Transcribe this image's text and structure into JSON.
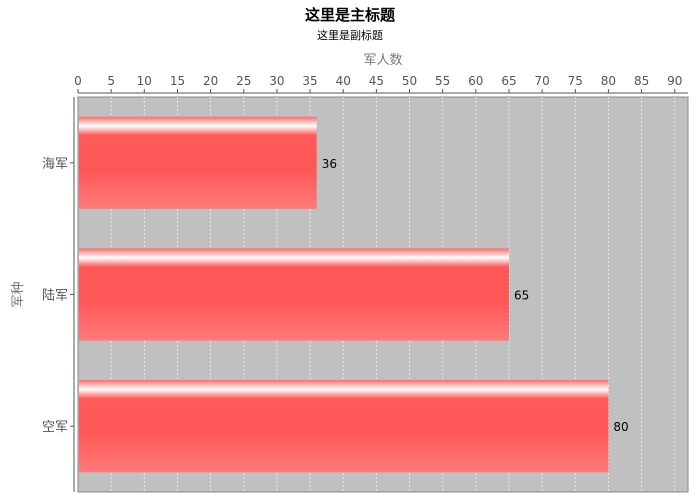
{
  "chart_data": {
    "type": "bar",
    "orientation": "horizontal",
    "title": "这里是主标题",
    "subtitle": "这里是副标题",
    "xlabel": "军人数",
    "ylabel": "军种",
    "xlim": [
      0,
      92
    ],
    "x_ticks": [
      0,
      5,
      10,
      15,
      20,
      25,
      30,
      35,
      40,
      45,
      50,
      55,
      60,
      65,
      70,
      75,
      80,
      85,
      90
    ],
    "x_axis_position": "top",
    "grid": true,
    "categories": [
      "海军",
      "陆军",
      "空军"
    ],
    "values": [
      36,
      65,
      80
    ],
    "data_labels": [
      "36",
      "65",
      "80"
    ],
    "colors": {
      "bar": "#ff5a5a",
      "bar_highlight": "#ffffff",
      "plot_bg": "#c0c0c0",
      "grid": "#e8e8e8",
      "axis_text": "#555555"
    }
  }
}
